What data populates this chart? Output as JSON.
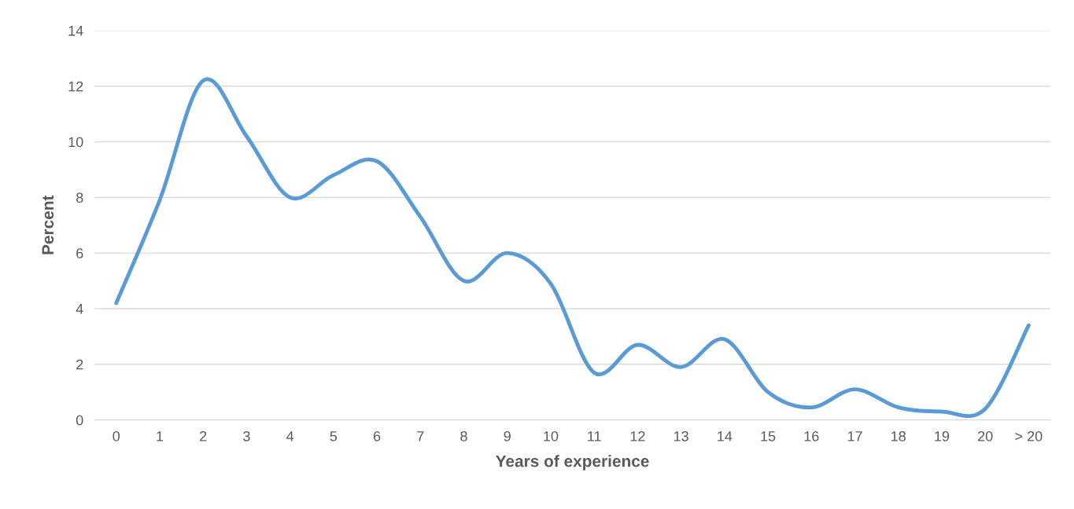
{
  "chart_data": {
    "type": "line",
    "xlabel": "Years of experience",
    "ylabel": "Percent",
    "categories": [
      "0",
      "1",
      "2",
      "3",
      "4",
      "5",
      "6",
      "7",
      "8",
      "9",
      "10",
      "11",
      "12",
      "13",
      "14",
      "15",
      "16",
      "17",
      "18",
      "19",
      "20",
      "> 20"
    ],
    "series": [
      {
        "color": "#5b9bd5",
        "values": [
          4.2,
          7.9,
          12.2,
          10.2,
          8.0,
          8.8,
          9.3,
          7.3,
          5.0,
          6.0,
          4.9,
          1.7,
          2.7,
          1.9,
          2.9,
          1.0,
          0.45,
          1.1,
          0.45,
          0.3,
          0.4,
          3.4
        ]
      }
    ],
    "ylim": [
      0,
      14
    ],
    "yticks": [
      0,
      2,
      4,
      6,
      8,
      10,
      12,
      14
    ],
    "grid": "y",
    "marker": "none",
    "line_style": "solid"
  }
}
